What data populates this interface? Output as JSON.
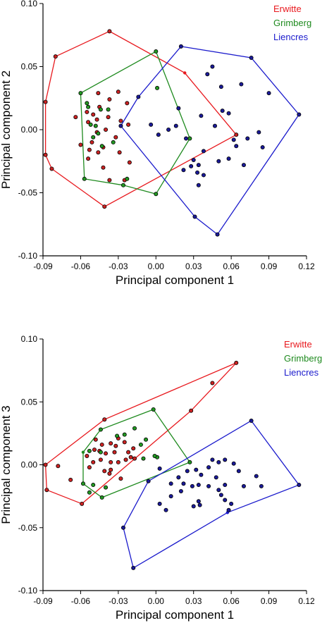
{
  "colors": {
    "Erwitte": "#e8191e",
    "Grimberg": "#1e8a1e",
    "Liencres": "#1a1acc",
    "point_fill_erwitte": "#cc2222",
    "point_fill_grimberg": "#229922",
    "point_fill_liencres": "#1a1a99"
  },
  "chart_data": [
    {
      "type": "scatter",
      "xlabel": "Principal component 1",
      "ylabel": "Principal component 2",
      "xlim": [
        -0.09,
        0.12
      ],
      "ylim": [
        -0.1,
        0.1
      ],
      "xticks": [
        "-0.09",
        "-0.06",
        "-0.03",
        "0.00",
        "0.03",
        "0.06",
        "0.09",
        "0.12"
      ],
      "yticks": [
        "-0.10",
        "-0.05",
        "0.00",
        "0.05",
        "0.10"
      ],
      "xtick_values": [
        -0.09,
        -0.06,
        -0.03,
        0.0,
        0.03,
        0.06,
        0.09,
        0.12
      ],
      "ytick_values": [
        -0.1,
        -0.05,
        0.0,
        0.05,
        0.1
      ],
      "legend": [
        "Erwitte",
        "Grimberg",
        "Liencres"
      ],
      "legend_position": "top-right",
      "series": [
        {
          "name": "Erwitte",
          "points": [
            [
              -0.037,
              0.078
            ],
            [
              -0.08,
              0.058
            ],
            [
              -0.088,
              0.022
            ],
            [
              -0.088,
              -0.02
            ],
            [
              -0.083,
              -0.031
            ],
            [
              -0.041,
              -0.061
            ],
            [
              0.064,
              -0.004
            ],
            [
              -0.045,
              0.018
            ],
            [
              -0.05,
              0.012
            ],
            [
              -0.054,
              0.006
            ],
            [
              -0.047,
              -0.002
            ],
            [
              -0.051,
              -0.01
            ],
            [
              -0.046,
              -0.018
            ],
            [
              -0.054,
              -0.023
            ],
            [
              -0.042,
              -0.03
            ],
            [
              -0.032,
              -0.006
            ],
            [
              -0.028,
              0.007
            ],
            [
              -0.03,
              0.03
            ],
            [
              -0.038,
              0.01
            ],
            [
              -0.042,
              -0.014
            ],
            [
              -0.037,
              -0.04
            ],
            [
              -0.025,
              -0.04
            ],
            [
              -0.021,
              -0.026
            ],
            [
              -0.022,
              0.004
            ],
            [
              -0.023,
              0.021
            ],
            [
              -0.046,
              0.029
            ],
            [
              -0.064,
              0.01
            ],
            [
              -0.06,
              -0.012
            ],
            [
              -0.055,
              0.014
            ],
            [
              -0.037,
              0.024
            ],
            [
              -0.047,
              0.008
            ],
            [
              -0.053,
              -0.016
            ],
            [
              -0.04,
              0.0
            ],
            [
              -0.029,
              -0.018
            ]
          ],
          "hull": [
            [
              -0.037,
              0.078
            ],
            [
              -0.08,
              0.058
            ],
            [
              -0.088,
              0.022
            ],
            [
              -0.088,
              -0.02
            ],
            [
              -0.083,
              -0.031
            ],
            [
              -0.041,
              -0.061
            ],
            [
              0.064,
              -0.004
            ],
            [
              0.023,
              0.045
            ]
          ]
        },
        {
          "name": "Grimberg",
          "points": [
            [
              -0.06,
              0.029
            ],
            [
              -0.057,
              -0.039
            ],
            [
              -0.026,
              -0.044
            ],
            [
              0.0,
              0.062
            ],
            [
              0.027,
              -0.007
            ],
            [
              0.0,
              -0.051
            ],
            [
              -0.055,
              0.021
            ],
            [
              -0.048,
              0.003
            ],
            [
              -0.043,
              -0.013
            ],
            [
              -0.052,
              0.004
            ],
            [
              -0.044,
              0.016
            ],
            [
              -0.034,
              -0.01
            ],
            [
              -0.023,
              -0.039
            ],
            [
              -0.046,
              -0.003
            ],
            [
              -0.054,
              0.018
            ],
            [
              -0.05,
              -0.006
            ],
            [
              0.001,
              0.033
            ],
            [
              -0.038,
              0.016
            ]
          ],
          "hull": [
            [
              -0.06,
              0.029
            ],
            [
              -0.057,
              -0.039
            ],
            [
              -0.026,
              -0.044
            ],
            [
              0.0,
              -0.051
            ],
            [
              0.027,
              -0.007
            ],
            [
              0.0,
              0.062
            ]
          ]
        },
        {
          "name": "Liencres",
          "points": [
            [
              0.02,
              0.066
            ],
            [
              0.076,
              0.057
            ],
            [
              0.114,
              0.012
            ],
            [
              0.049,
              -0.083
            ],
            [
              0.031,
              -0.069
            ],
            [
              -0.028,
              0.003
            ],
            [
              0.041,
              0.044
            ],
            [
              0.052,
              0.034
            ],
            [
              0.068,
              0.036
            ],
            [
              0.09,
              0.029
            ],
            [
              0.036,
              0.011
            ],
            [
              0.053,
              0.015
            ],
            [
              0.058,
              0.013
            ],
            [
              0.047,
              0.003
            ],
            [
              0.018,
              0.017
            ],
            [
              0.024,
              -0.007
            ],
            [
              0.038,
              -0.017
            ],
            [
              0.062,
              -0.008
            ],
            [
              0.073,
              -0.007
            ],
            [
              0.082,
              -0.002
            ],
            [
              0.085,
              -0.014
            ],
            [
              0.064,
              -0.013
            ],
            [
              0.058,
              -0.023
            ],
            [
              0.05,
              -0.025
            ],
            [
              0.03,
              -0.024
            ],
            [
              0.033,
              -0.034
            ],
            [
              0.038,
              -0.036
            ],
            [
              0.034,
              -0.044
            ],
            [
              0.022,
              -0.032
            ],
            [
              0.028,
              -0.029
            ],
            [
              -0.014,
              0.026
            ],
            [
              -0.004,
              0.004
            ],
            [
              0.01,
              0.0
            ],
            [
              0.002,
              -0.004
            ],
            [
              0.016,
              0.003
            ],
            [
              0.034,
              -0.028
            ],
            [
              0.045,
              0.05
            ],
            [
              0.07,
              -0.028
            ]
          ],
          "hull": [
            [
              0.02,
              0.066
            ],
            [
              0.076,
              0.057
            ],
            [
              0.114,
              0.012
            ],
            [
              0.049,
              -0.083
            ],
            [
              0.031,
              -0.069
            ],
            [
              -0.028,
              0.003
            ],
            [
              -0.014,
              0.026
            ]
          ]
        }
      ]
    },
    {
      "type": "scatter",
      "xlabel": "Principal component 1",
      "ylabel": "Principal component 3",
      "xlim": [
        -0.09,
        0.12
      ],
      "ylim": [
        -0.1,
        0.1
      ],
      "xticks": [
        "-0.09",
        "-0.06",
        "-0.03",
        "0.00",
        "0.03",
        "0.06",
        "0.09",
        "0.12"
      ],
      "yticks": [
        "-0.10",
        "-0.05",
        "0.00",
        "0.05",
        "0.10"
      ],
      "xtick_values": [
        -0.09,
        -0.06,
        -0.03,
        0.0,
        0.03,
        0.06,
        0.09,
        0.12
      ],
      "ytick_values": [
        -0.1,
        -0.05,
        0.0,
        0.05,
        0.1
      ],
      "legend": [
        "Erwitte",
        "Grimberg",
        "Liencres"
      ],
      "legend_position": "top-right",
      "series": [
        {
          "name": "Erwitte",
          "points": [
            [
              0.064,
              0.081
            ],
            [
              -0.088,
              0.0
            ],
            [
              -0.087,
              -0.02
            ],
            [
              -0.059,
              -0.031
            ],
            [
              -0.041,
              0.036
            ],
            [
              0.028,
              0.043
            ],
            [
              0.045,
              0.065
            ],
            [
              -0.048,
              0.02
            ],
            [
              -0.043,
              0.016
            ],
            [
              -0.049,
              0.012
            ],
            [
              -0.045,
              0.011
            ],
            [
              -0.04,
              0.009
            ],
            [
              -0.036,
              0.017
            ],
            [
              -0.03,
              0.021
            ],
            [
              -0.025,
              0.018
            ],
            [
              -0.022,
              0.01
            ],
            [
              -0.018,
              0.013
            ],
            [
              -0.033,
              0.01
            ],
            [
              -0.036,
              0.002
            ],
            [
              -0.044,
              0.004
            ],
            [
              -0.05,
              0.002
            ],
            [
              -0.053,
              -0.002
            ],
            [
              -0.041,
              -0.005
            ],
            [
              -0.037,
              -0.007
            ],
            [
              -0.03,
              0.002
            ],
            [
              -0.017,
              0.005
            ],
            [
              -0.02,
              0.006
            ],
            [
              -0.078,
              -0.001
            ],
            [
              -0.068,
              -0.012
            ],
            [
              -0.055,
              0.007
            ],
            [
              -0.032,
              0.015
            ],
            [
              -0.024,
              0.004
            ],
            [
              -0.036,
              -0.004
            ],
            [
              -0.028,
              -0.011
            ]
          ],
          "hull": [
            [
              0.064,
              0.081
            ],
            [
              -0.041,
              0.036
            ],
            [
              -0.088,
              0.0
            ],
            [
              -0.087,
              -0.02
            ],
            [
              -0.059,
              -0.031
            ],
            [
              0.028,
              0.043
            ]
          ]
        },
        {
          "name": "Grimberg",
          "points": [
            [
              -0.002,
              0.044
            ],
            [
              -0.043,
              -0.026
            ],
            [
              -0.053,
              -0.022
            ],
            [
              -0.058,
              -0.015
            ],
            [
              0.027,
              0.002
            ],
            [
              -0.044,
              0.028
            ],
            [
              -0.031,
              0.023
            ],
            [
              -0.025,
              0.024
            ],
            [
              -0.017,
              0.029
            ],
            [
              -0.008,
              0.02
            ],
            [
              -0.012,
              0.016
            ],
            [
              -0.053,
              0.011
            ],
            [
              -0.04,
              -0.018
            ],
            [
              -0.05,
              -0.016
            ],
            [
              -0.044,
              0.01
            ],
            [
              -0.01,
              0.005
            ],
            [
              0.001,
              0.006
            ],
            [
              -0.001,
              0.007
            ]
          ],
          "hull": [
            [
              -0.002,
              0.044
            ],
            [
              -0.044,
              0.028
            ],
            [
              -0.058,
              0.01
            ],
            [
              -0.058,
              -0.015
            ],
            [
              -0.043,
              -0.026
            ],
            [
              0.027,
              0.002
            ]
          ]
        },
        {
          "name": "Liencres",
          "points": [
            [
              0.076,
              0.035
            ],
            [
              0.114,
              -0.016
            ],
            [
              -0.018,
              -0.082
            ],
            [
              -0.026,
              -0.05
            ],
            [
              -0.006,
              -0.013
            ],
            [
              0.003,
              -0.003
            ],
            [
              0.012,
              -0.015
            ],
            [
              0.018,
              -0.01
            ],
            [
              0.025,
              -0.005
            ],
            [
              0.032,
              -0.004
            ],
            [
              0.036,
              -0.008
            ],
            [
              0.042,
              -0.002
            ],
            [
              0.05,
              0.002
            ],
            [
              0.055,
              0.004
            ],
            [
              0.062,
              0.001
            ],
            [
              0.066,
              -0.005
            ],
            [
              0.08,
              -0.009
            ],
            [
              0.084,
              -0.017
            ],
            [
              0.07,
              -0.017
            ],
            [
              0.055,
              -0.016
            ],
            [
              0.05,
              -0.02
            ],
            [
              0.042,
              -0.017
            ],
            [
              0.034,
              -0.016
            ],
            [
              0.029,
              -0.017
            ],
            [
              0.02,
              -0.021
            ],
            [
              0.012,
              -0.025
            ],
            [
              0.003,
              -0.031
            ],
            [
              0.008,
              -0.036
            ],
            [
              0.03,
              -0.033
            ],
            [
              0.035,
              -0.032
            ],
            [
              0.052,
              -0.024
            ],
            [
              0.055,
              -0.028
            ],
            [
              0.06,
              -0.031
            ],
            [
              0.058,
              -0.036
            ],
            [
              0.034,
              -0.029
            ],
            [
              0.045,
              0.004
            ],
            [
              0.048,
              -0.01
            ],
            [
              0.022,
              -0.015
            ]
          ],
          "hull": [
            [
              0.076,
              0.035
            ],
            [
              0.114,
              -0.016
            ],
            [
              0.057,
              -0.038
            ],
            [
              -0.018,
              -0.082
            ],
            [
              -0.026,
              -0.05
            ],
            [
              -0.006,
              -0.013
            ]
          ]
        }
      ]
    }
  ]
}
